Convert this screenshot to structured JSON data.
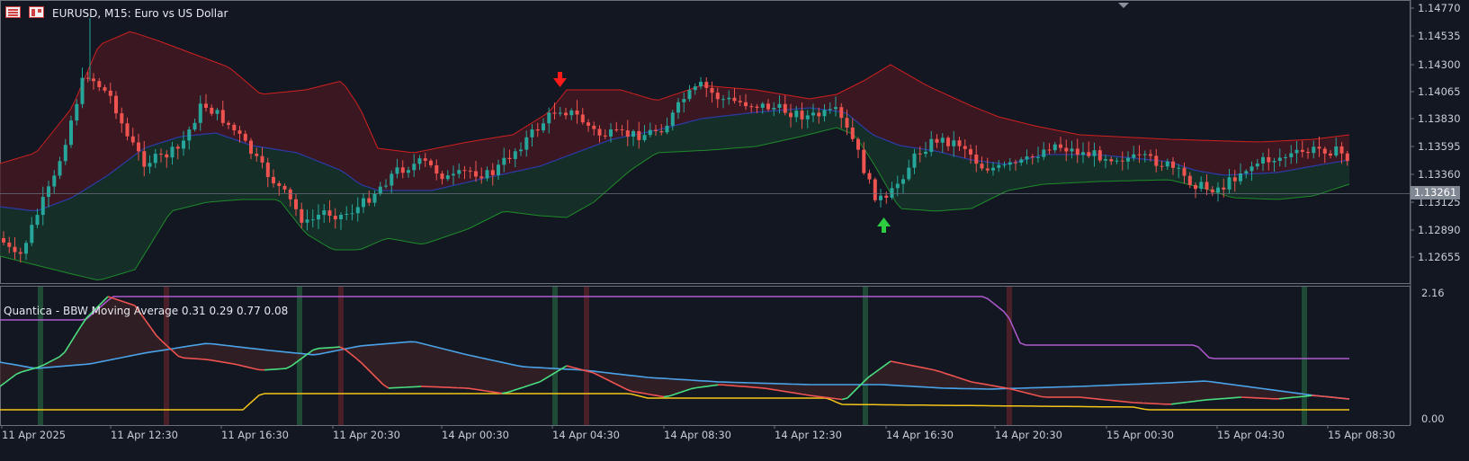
{
  "window": {
    "symbol_title": "EURUSD, M15:  Euro vs US Dollar",
    "indicator_title": "Quantica - BBW Moving Average 0.31 0.29 0.77 0.08",
    "current_price": "1.13261"
  },
  "toolbar_icons": [
    "chart-bars-icon",
    "chart-window-icon"
  ],
  "colors": {
    "background": "#131722",
    "bull_candle": "#26a69a",
    "bear_candle": "#ef5350",
    "upper_band": "#d02020",
    "lower_band": "#1f8a2a",
    "middle_band": "#2a3aa0",
    "bbw_line_up": "#4ade80",
    "bbw_line_down": "#ef5350",
    "bbw_ma": "#4aa3e8",
    "threshold_high": "#b05ad0",
    "threshold_low": "#f5c518",
    "signal_buy_bar": "#1f4a35",
    "signal_sell_bar": "#4a2028"
  },
  "price_axis": {
    "ticks": [
      "1.14770",
      "1.14535",
      "1.14300",
      "1.14065",
      "1.13830",
      "1.13595",
      "1.13360",
      "1.13125",
      "1.12890",
      "1.12655"
    ]
  },
  "indicator_axis": {
    "ticks": [
      "2.16",
      "0.00"
    ]
  },
  "time_axis": {
    "ticks": [
      "11 Apr 2025",
      "11 Apr 12:30",
      "11 Apr 16:30",
      "11 Apr 20:30",
      "14 Apr 00:30",
      "14 Apr 04:30",
      "14 Apr 08:30",
      "14 Apr 12:30",
      "14 Apr 16:30",
      "14 Apr 20:30",
      "15 Apr 00:30",
      "15 Apr 04:30",
      "15 Apr 08:30"
    ]
  },
  "signals": [
    {
      "type": "sell",
      "arrow": "down-arrow-icon",
      "color": "#ff1a1a"
    },
    {
      "type": "buy",
      "arrow": "up-arrow-icon",
      "color": "#2ecc40"
    }
  ]
}
